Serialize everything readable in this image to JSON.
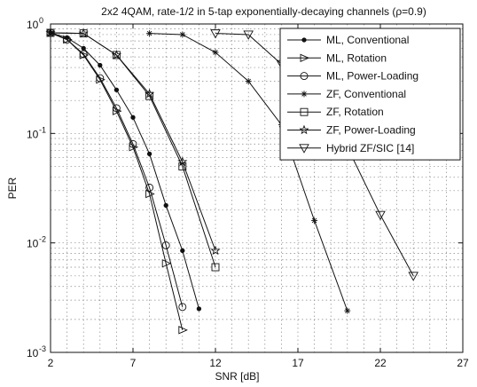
{
  "chart_data": {
    "type": "line",
    "title": "2x2 4QAM, rate-1/2 in 5-tap exponentially-decaying channels (ρ=0.9)",
    "xlabel": "SNR [dB]",
    "ylabel": "PER",
    "xlim": [
      2,
      27
    ],
    "ylim": [
      0.001,
      1
    ],
    "yscale": "log",
    "xticks": [
      2,
      7,
      12,
      17,
      22,
      27
    ],
    "yticks": [
      {
        "value": 1,
        "base": "10",
        "exp": "0"
      },
      {
        "value": 0.1,
        "base": "10",
        "exp": "-1"
      },
      {
        "value": 0.01,
        "base": "10",
        "exp": "-2"
      },
      {
        "value": 0.001,
        "base": "10",
        "exp": "-3"
      }
    ],
    "grid": true,
    "legend_position": "top-right",
    "series": [
      {
        "name": "ML, Conventional",
        "marker": "dot",
        "x": [
          2,
          3,
          4,
          5,
          6,
          7,
          8,
          9,
          10,
          11
        ],
        "y": [
          0.83,
          0.75,
          0.6,
          0.42,
          0.25,
          0.14,
          0.065,
          0.022,
          0.0085,
          0.0025
        ]
      },
      {
        "name": "ML, Rotation",
        "marker": "triangle-right",
        "x": [
          2,
          3,
          4,
          5,
          6,
          7,
          8,
          9,
          10
        ],
        "y": [
          0.83,
          0.72,
          0.52,
          0.31,
          0.16,
          0.075,
          0.028,
          0.0065,
          0.0016
        ]
      },
      {
        "name": "ML, Power-Loading",
        "marker": "circle",
        "x": [
          2,
          3,
          4,
          5,
          6,
          7,
          8,
          9,
          10
        ],
        "y": [
          0.83,
          0.72,
          0.53,
          0.32,
          0.17,
          0.08,
          0.032,
          0.0095,
          0.0026
        ]
      },
      {
        "name": "ZF, Conventional",
        "marker": "star",
        "x": [
          8,
          10,
          12,
          14,
          16,
          18,
          20
        ],
        "y": [
          0.82,
          0.8,
          0.55,
          0.3,
          0.12,
          0.016,
          0.0024
        ]
      },
      {
        "name": "ZF, Rotation",
        "marker": "square",
        "x": [
          2,
          4,
          6,
          8,
          10,
          12
        ],
        "y": [
          0.83,
          0.82,
          0.52,
          0.22,
          0.05,
          0.006
        ]
      },
      {
        "name": "ZF, Power-Loading",
        "marker": "pentagram",
        "x": [
          2,
          4,
          6,
          8,
          10,
          12
        ],
        "y": [
          0.83,
          0.82,
          0.52,
          0.23,
          0.055,
          0.0085
        ]
      },
      {
        "name": "Hybrid ZF/SIC [14]",
        "marker": "triangle-down",
        "x": [
          12,
          14,
          16,
          18,
          20,
          22,
          24
        ],
        "y": [
          0.82,
          0.8,
          0.43,
          0.22,
          0.075,
          0.018,
          0.005
        ]
      }
    ]
  }
}
